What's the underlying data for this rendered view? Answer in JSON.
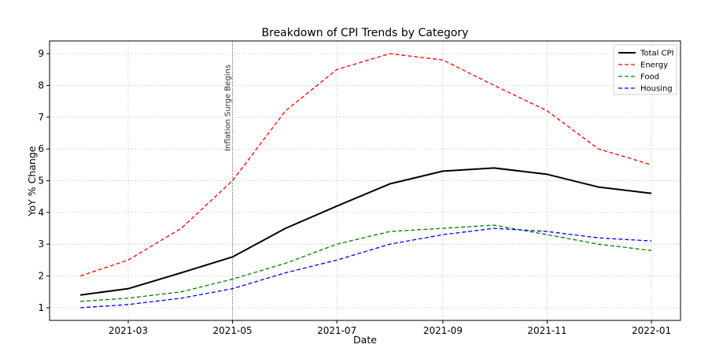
{
  "chart_data": {
    "type": "line",
    "title": "Breakdown of CPI Trends by Category",
    "xlabel": "Date",
    "ylabel": "YoY % Change",
    "x": [
      "2021-02-01",
      "2021-03-01",
      "2021-04-01",
      "2021-05-01",
      "2021-06-01",
      "2021-07-01",
      "2021-08-01",
      "2021-09-01",
      "2021-10-01",
      "2021-11-01",
      "2021-12-01",
      "2022-01-01"
    ],
    "xlim": [
      "2021-01-14",
      "2022-01-18"
    ],
    "ylim": [
      0.6,
      9.4
    ],
    "x_ticks": [
      "2021-03",
      "2021-05",
      "2021-07",
      "2021-09",
      "2021-11",
      "2022-01"
    ],
    "y_ticks": [
      1,
      2,
      3,
      4,
      5,
      6,
      7,
      8,
      9
    ],
    "grid": true,
    "legend_position": "top-right",
    "series": [
      {
        "name": "Total CPI",
        "color": "#000000",
        "style": "solid",
        "values": [
          1.4,
          1.6,
          2.1,
          2.6,
          3.5,
          4.2,
          4.9,
          5.3,
          5.4,
          5.2,
          4.8,
          4.6
        ]
      },
      {
        "name": "Energy",
        "color": "#ff0000",
        "style": "dashed",
        "values": [
          2.0,
          2.5,
          3.5,
          5.0,
          7.2,
          8.5,
          9.0,
          8.8,
          8.0,
          7.2,
          6.0,
          5.5
        ]
      },
      {
        "name": "Food",
        "color": "#008000",
        "style": "dashed",
        "values": [
          1.2,
          1.3,
          1.5,
          1.9,
          2.4,
          3.0,
          3.4,
          3.5,
          3.6,
          3.3,
          3.0,
          2.8
        ]
      },
      {
        "name": "Housing",
        "color": "#0000ff",
        "style": "dashed",
        "values": [
          1.0,
          1.1,
          1.3,
          1.6,
          2.1,
          2.5,
          3.0,
          3.3,
          3.5,
          3.4,
          3.2,
          3.1
        ]
      }
    ],
    "annotations": [
      {
        "text": "Inflation Surge Begins",
        "x": "2021-05-01",
        "style": "vertical-dotted-line"
      }
    ]
  }
}
